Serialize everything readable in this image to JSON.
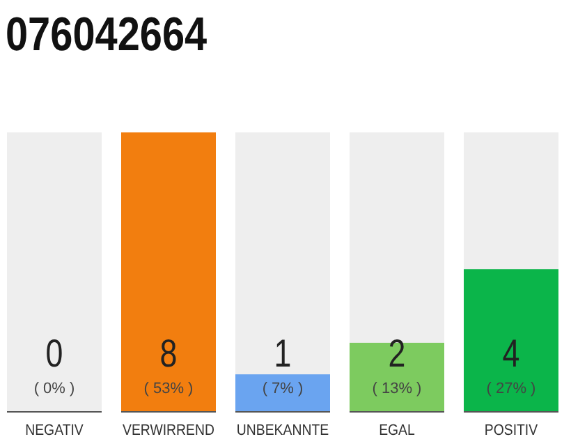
{
  "chart_data": {
    "type": "bar",
    "title": "076042664",
    "categories": [
      "NEGATIV",
      "VERWIRREND",
      "UNBEKANNTE",
      "EGAL",
      "POSITIV"
    ],
    "values": [
      0,
      53,
      7,
      13,
      27
    ],
    "colors": [
      "#9e9e9e",
      "#f27e0f",
      "#6aa4f0",
      "#7dcb5f",
      "#0bb54a"
    ],
    "value_labels": [
      "( 0% )",
      "( 53% )",
      "( 7% )",
      "( 13% )",
      "( 27% )"
    ],
    "annotations": [
      "0",
      "8",
      "1",
      "2",
      "4"
    ],
    "bands": [
      {
        "axis": "x",
        "from": "NEGATIV",
        "to": "NEGATIV",
        "color": "#eeeeee"
      },
      {
        "axis": "x",
        "from": "UNBEKANNTE",
        "to": "UNBEKANNTE",
        "color": "#eeeeee"
      },
      {
        "axis": "x",
        "from": "EGAL",
        "to": "EGAL",
        "color": "#eeeeee"
      },
      {
        "axis": "x",
        "from": "POSITIV",
        "to": "POSITIV",
        "color": "#eeeeee"
      }
    ]
  }
}
